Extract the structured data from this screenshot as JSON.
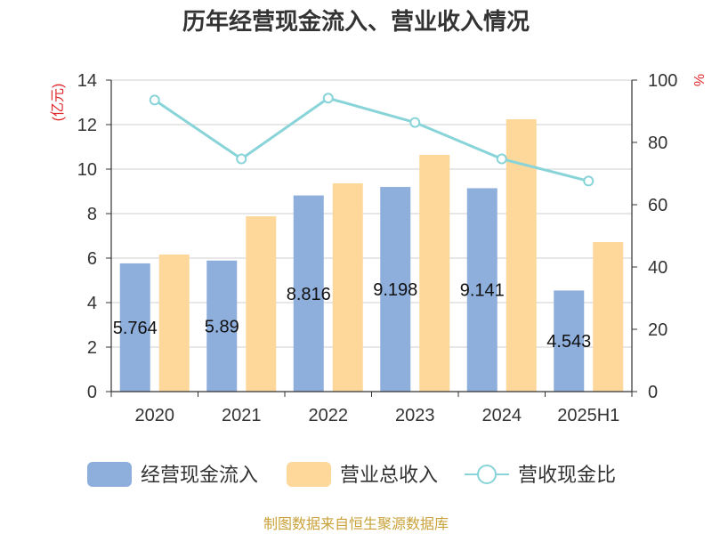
{
  "chart_data": {
    "type": "bar",
    "title": "历年经营现金流入、营业收入情况",
    "ylabel": "(亿元)",
    "y2label": "%",
    "categories": [
      "2020",
      "2021",
      "2022",
      "2023",
      "2024",
      "2025H1"
    ],
    "ylim": [
      0,
      14
    ],
    "yticks": [
      0,
      2,
      4,
      6,
      8,
      10,
      12,
      14
    ],
    "y2lim": [
      0,
      100
    ],
    "y2ticks": [
      0,
      20,
      40,
      60,
      80,
      100
    ],
    "grid": true,
    "legend": "bottom",
    "series": [
      {
        "name": "经营现金流入",
        "type": "bar",
        "axis": "left",
        "color": "#8eaedb",
        "data_labels": true,
        "values": [
          5.764,
          5.89,
          8.816,
          9.198,
          9.141,
          4.543
        ]
      },
      {
        "name": "营业总收入",
        "type": "bar",
        "axis": "left",
        "color": "#fdd89a",
        "data_labels": false,
        "values": [
          6.16,
          7.88,
          9.36,
          10.64,
          12.24,
          6.72
        ]
      },
      {
        "name": "营收现金比",
        "type": "line",
        "axis": "right",
        "color": "#88d4d8",
        "data_labels": false,
        "values": [
          93.6,
          74.7,
          94.2,
          86.4,
          74.7,
          67.6
        ]
      }
    ],
    "source": "制图数据来自恒生聚源数据库"
  },
  "colors": {
    "axis_unit": "#e0282c",
    "source": "#c9a23a",
    "grid": "#cfcfcf",
    "axis": "#333333"
  }
}
